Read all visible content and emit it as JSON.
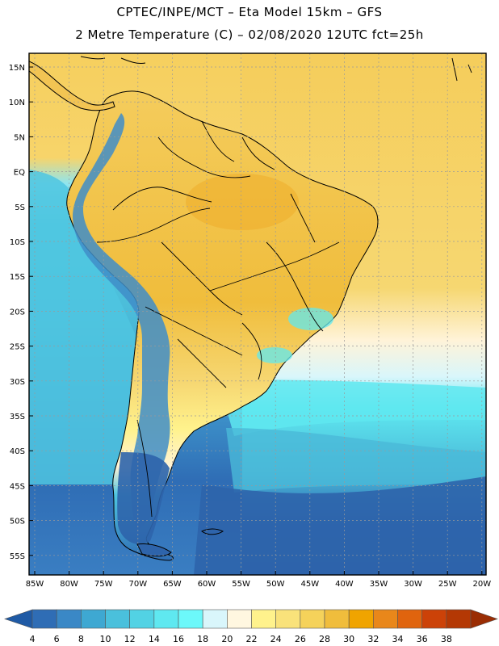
{
  "header": {
    "line1": "CPTEC/INPE/MCT –  Eta Model 15km – GFS",
    "line2": "2 Metre Temperature (C) – 02/08/2020 12UTC fct=25h"
  },
  "map": {
    "lat_labels": [
      "15N",
      "10N",
      "5N",
      "EQ",
      "5S",
      "10S",
      "15S",
      "20S",
      "25S",
      "30S",
      "35S",
      "40S",
      "45S",
      "50S",
      "55S"
    ],
    "lon_labels": [
      "85W",
      "80W",
      "75W",
      "70W",
      "65W",
      "60W",
      "55W",
      "50W",
      "45W",
      "40W",
      "35W",
      "30W",
      "25W",
      "20W"
    ]
  },
  "colorbar": {
    "ticks": [
      "4",
      "6",
      "8",
      "10",
      "12",
      "14",
      "16",
      "18",
      "20",
      "22",
      "24",
      "26",
      "28",
      "30",
      "32",
      "34",
      "36",
      "38"
    ],
    "colors": [
      "#1f5aa5",
      "#2f6db5",
      "#3a88c6",
      "#3ea8d2",
      "#4ac0dc",
      "#52d2e4",
      "#5fe8f0",
      "#6cf8fa",
      "#d9f6fb",
      "#fff7e0",
      "#fff28c",
      "#f9e27a",
      "#f5d25a",
      "#f0bd3c",
      "#f0a400",
      "#e9871a",
      "#e0640e",
      "#cc4208",
      "#b43804",
      "#9a2d04"
    ]
  },
  "colors": {
    "land_warm": "#f2c453",
    "ocean_warm": "#f4cf62",
    "ocean_cool": "#5fd8ea",
    "ocean_cold": "#2e64ab",
    "andes": "#3f8dc8",
    "outline": "#000000"
  }
}
